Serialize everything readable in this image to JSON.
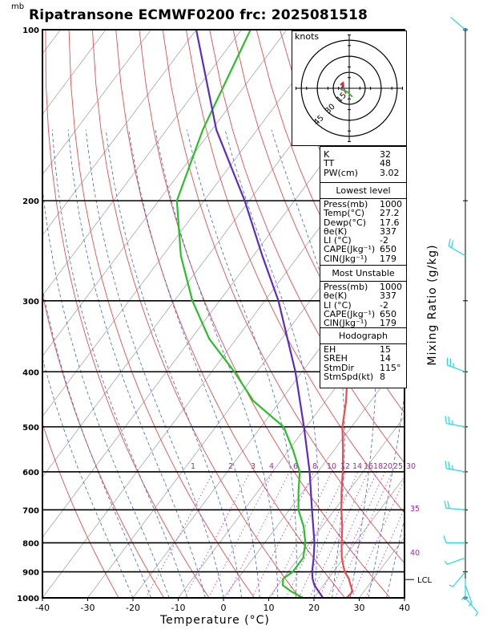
{
  "header": {
    "pressure_unit": "mb",
    "title": "Ripatransone ECMWF0200 frc: 2025081518"
  },
  "chart_data": {
    "type": "line",
    "title": "Ripatransone ECMWF0200 frc: 2025081518",
    "xlabel": "Temperature (°C)",
    "ylabel": "Mixing Ratio (g/kg)",
    "x_ticks": [
      -40,
      -30,
      -20,
      -10,
      0,
      10,
      20,
      30,
      40
    ],
    "pressure_levels": [
      100,
      200,
      300,
      400,
      500,
      600,
      700,
      800,
      900,
      1000
    ],
    "xlim": [
      -40,
      40
    ],
    "ylim_mb": [
      1000,
      100
    ],
    "grid": true,
    "legend": "none",
    "mixing_ratio_labels": [
      "1",
      "2",
      "3",
      "4",
      "6",
      "8",
      "10",
      "12",
      "14",
      "16",
      "18",
      "20",
      "25",
      "30"
    ],
    "skew_labels": [
      "35",
      "40"
    ],
    "lcl_label": "LCL",
    "lcl_pressure_mb": 890,
    "series": [
      {
        "color": "#f04a4a",
        "points": [
          [
            1000,
            27.2
          ],
          [
            975,
            27.5
          ],
          [
            950,
            26
          ],
          [
            925,
            24.5
          ],
          [
            900,
            22.5
          ],
          [
            875,
            21
          ],
          [
            850,
            19.5
          ],
          [
            800,
            17
          ],
          [
            750,
            14.5
          ],
          [
            700,
            11.5
          ],
          [
            650,
            8.5
          ],
          [
            600,
            5.5
          ],
          [
            550,
            2
          ],
          [
            500,
            -2
          ],
          [
            450,
            -5.5
          ],
          [
            400,
            -10
          ],
          [
            350,
            -16
          ],
          [
            300,
            -22
          ],
          [
            250,
            -30
          ],
          [
            200,
            -38
          ],
          [
            150,
            -47
          ],
          [
            100,
            -57
          ]
        ]
      },
      {
        "color": "#27c127",
        "points": [
          [
            1000,
            17.6
          ],
          [
            975,
            14
          ],
          [
            950,
            11
          ],
          [
            925,
            10
          ],
          [
            900,
            11
          ],
          [
            850,
            11
          ],
          [
            800,
            9
          ],
          [
            750,
            6
          ],
          [
            700,
            2
          ],
          [
            650,
            -1
          ],
          [
            600,
            -4
          ],
          [
            550,
            -9
          ],
          [
            500,
            -15
          ],
          [
            450,
            -26
          ],
          [
            400,
            -35
          ],
          [
            350,
            -46
          ],
          [
            300,
            -56
          ],
          [
            250,
            -66
          ],
          [
            200,
            -76
          ],
          [
            150,
            -82
          ],
          [
            100,
            -88
          ]
        ]
      },
      {
        "color": "#5a2bc9",
        "points": [
          [
            1000,
            22
          ],
          [
            950,
            18
          ],
          [
            925,
            16.5
          ],
          [
            900,
            15.3
          ],
          [
            850,
            13.3
          ],
          [
            800,
            11
          ],
          [
            700,
            5
          ],
          [
            600,
            -1.8
          ],
          [
            500,
            -10.5
          ],
          [
            400,
            -21.5
          ],
          [
            300,
            -37
          ],
          [
            250,
            -48
          ],
          [
            200,
            -61
          ],
          [
            150,
            -79
          ],
          [
            100,
            -100
          ]
        ]
      }
    ],
    "hodograph": {
      "units_label": "knots",
      "ring_labels": [
        "15",
        "30",
        "45"
      ],
      "color": "#e0242e",
      "segments": [
        {
          "color": "#e0242e",
          "points": [
            [
              -3,
              -5
            ],
            [
              -6,
              2
            ]
          ]
        },
        {
          "color": "#27c127",
          "points": [
            [
              3,
              -8
            ],
            [
              -2,
              -3
            ],
            [
              -8,
              -1
            ]
          ]
        },
        {
          "color": "#5a2bc9",
          "points": [
            [
              -6,
              2
            ],
            [
              -8,
              -1
            ]
          ]
        }
      ]
    }
  },
  "indices": {
    "top": [
      {
        "label": "K",
        "value": "32"
      },
      {
        "label": "TT",
        "value": "48"
      },
      {
        "label": "PW(cm)",
        "value": "3.02"
      }
    ],
    "lowest": {
      "title": "Lowest level",
      "rows": [
        {
          "label": "Press(mb)",
          "value": "1000"
        },
        {
          "label": "Temp(°C)",
          "value": "27.2"
        },
        {
          "label": "Dewp(°C)",
          "value": "17.6"
        },
        {
          "label": "θe(K)",
          "value": "337"
        },
        {
          "label": "LI (°C)",
          "value": "-2"
        },
        {
          "label": "CAPE(Jkg⁻¹)",
          "value": "650"
        },
        {
          "label": "CIN(Jkg⁻¹)",
          "value": "179"
        }
      ]
    },
    "unstable": {
      "title": "Most Unstable",
      "rows": [
        {
          "label": "Press(mb)",
          "value": "1000"
        },
        {
          "label": "θe(K)",
          "value": "337"
        },
        {
          "label": "LI (°C)",
          "value": "-2"
        },
        {
          "label": "CAPE(Jkg⁻¹)",
          "value": "650"
        },
        {
          "label": "CIN(Jkg⁻¹)",
          "value": "179"
        }
      ]
    },
    "hodograph": {
      "title": "Hodograph",
      "rows": [
        {
          "label": "EH",
          "value": "15"
        },
        {
          "label": "SREH",
          "value": "14"
        },
        {
          "label": "StmDir",
          "value": "115°"
        },
        {
          "label": "StmSpd(kt)",
          "value": "8"
        }
      ]
    }
  },
  "wind_profile": {
    "color": "#21d7e8",
    "barbs": [
      {
        "p": 100,
        "dir": 310,
        "spd": 3
      },
      {
        "p": 250,
        "dir": 300,
        "spd": 20
      },
      {
        "p": 400,
        "dir": 290,
        "spd": 25
      },
      {
        "p": 500,
        "dir": 280,
        "spd": 25
      },
      {
        "p": 600,
        "dir": 280,
        "spd": 25
      },
      {
        "p": 700,
        "dir": 275,
        "spd": 20
      },
      {
        "p": 800,
        "dir": 270,
        "spd": 10
      },
      {
        "p": 850,
        "dir": 250,
        "spd": 8
      },
      {
        "p": 900,
        "dir": 220,
        "spd": 6
      },
      {
        "p": 925,
        "dir": 180,
        "spd": 5
      },
      {
        "p": 950,
        "dir": 160,
        "spd": 5
      },
      {
        "p": 1000,
        "dir": 140,
        "spd": 5
      }
    ]
  }
}
